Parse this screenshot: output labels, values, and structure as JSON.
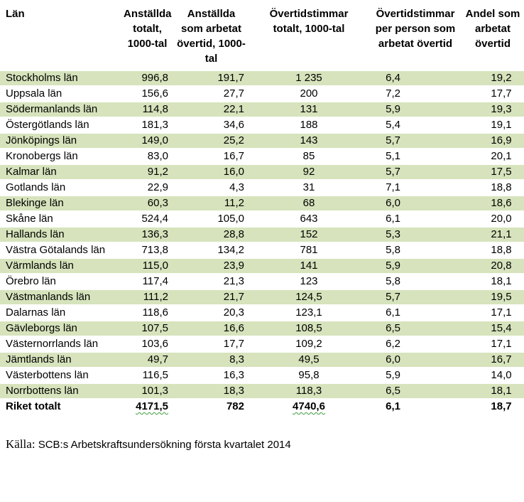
{
  "colors": {
    "band": "#d6e3bc",
    "squiggle": "#3c9b3c"
  },
  "table": {
    "columns": [
      {
        "id": "lan",
        "label": "Län"
      },
      {
        "id": "anstallda-totalt",
        "label": "Anställda totalt, 1000-tal"
      },
      {
        "id": "anstallda-overtid",
        "label": "Anställda som arbetat övertid, 1000-tal"
      },
      {
        "id": "overtidstimmar-totalt",
        "label": "Övertidstimmar totalt, 1000-tal"
      },
      {
        "id": "timmar-per-person",
        "label": "Övertidstimmar per person som arbetat övertid"
      },
      {
        "id": "andel-overtid",
        "label": "Andel som arbetat övertid"
      }
    ],
    "rows": [
      {
        "cells": [
          "Stockholms län",
          "996,8",
          "191,7",
          "1 235",
          "6,4",
          "19,2"
        ]
      },
      {
        "cells": [
          "Uppsala län",
          "156,6",
          "27,7",
          "200",
          "7,2",
          "17,7"
        ]
      },
      {
        "cells": [
          "Södermanlands län",
          "114,8",
          "22,1",
          "131",
          "5,9",
          "19,3"
        ]
      },
      {
        "cells": [
          "Östergötlands län",
          "181,3",
          "34,6",
          "188",
          "5,4",
          "19,1"
        ]
      },
      {
        "cells": [
          "Jönköpings län",
          "149,0",
          "25,2",
          "143",
          "5,7",
          "16,9"
        ]
      },
      {
        "cells": [
          "Kronobergs län",
          "83,0",
          "16,7",
          "85",
          "5,1",
          "20,1"
        ]
      },
      {
        "cells": [
          "Kalmar län",
          "91,2",
          "16,0",
          "92",
          "5,7",
          "17,5"
        ]
      },
      {
        "cells": [
          "Gotlands län",
          "22,9",
          "4,3",
          "31",
          "7,1",
          "18,8"
        ]
      },
      {
        "cells": [
          "Blekinge län",
          "60,3",
          "11,2",
          "68",
          "6,0",
          "18,6"
        ]
      },
      {
        "cells": [
          "Skåne län",
          "524,4",
          "105,0",
          "643",
          "6,1",
          "20,0"
        ]
      },
      {
        "cells": [
          "Hallands län",
          "136,3",
          "28,8",
          "152",
          "5,3",
          "21,1"
        ]
      },
      {
        "cells": [
          "Västra Götalands län",
          "713,8",
          "134,2",
          "781",
          "5,8",
          "18,8"
        ]
      },
      {
        "cells": [
          "Värmlands län",
          "115,0",
          "23,9",
          "141",
          "5,9",
          "20,8"
        ]
      },
      {
        "cells": [
          "Örebro län",
          "117,4",
          "21,3",
          "123",
          "5,8",
          "18,1"
        ]
      },
      {
        "cells": [
          "Västmanlands län",
          "111,2",
          "21,7",
          "124,5",
          "5,7",
          "19,5"
        ]
      },
      {
        "cells": [
          "Dalarnas län",
          "118,6",
          "20,3",
          "123,1",
          "6,1",
          "17,1"
        ]
      },
      {
        "cells": [
          "Gävleborgs län",
          "107,5",
          "16,6",
          "108,5",
          "6,5",
          "15,4"
        ]
      },
      {
        "cells": [
          "Västernorrlands län",
          "103,6",
          "17,7",
          "109,2",
          "6,2",
          "17,1"
        ]
      },
      {
        "cells": [
          "Jämtlands län",
          "49,7",
          "8,3",
          "49,5",
          "6,0",
          "16,7"
        ]
      },
      {
        "cells": [
          "Västerbottens län",
          "116,5",
          "16,3",
          "95,8",
          "5,9",
          "14,0"
        ]
      },
      {
        "cells": [
          "Norrbottens län",
          "101,3",
          "18,3",
          "118,3",
          "6,5",
          "18,1"
        ]
      },
      {
        "cells": [
          "Riket totalt",
          "4171,5",
          "782",
          "4740,6",
          "6,1",
          "18,7"
        ],
        "total": true,
        "squiggle_cols": [
          1,
          3
        ]
      }
    ]
  },
  "source": {
    "prefix": "Källa:",
    "text": "SCB:s Arbetskraftsundersökning första kvartalet 2014"
  }
}
